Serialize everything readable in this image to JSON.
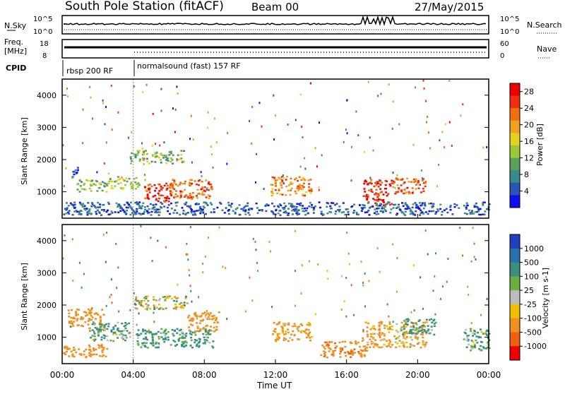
{
  "header": {
    "station": "South Pole Station (fitACF)",
    "beam": "Beam 00",
    "date": "27/May/2015"
  },
  "top_panels": {
    "nsky_label": "N.Sky",
    "nsearch_label": "N.Search",
    "nsky_tick_top": "10^5",
    "nsky_tick_bottom": "10^0",
    "freq_label_1": "Freq.",
    "freq_label_2": "[MHz]",
    "freq_tick_top": "18",
    "freq_tick_bottom": "8",
    "nave_label": "Nave",
    "nave_tick_top": "60",
    "nave_tick_bottom": "0",
    "cpid_label": "CPID",
    "cpid_1": "rbsp 200 RF",
    "cpid_2": "normalsound (fast) 157 RF"
  },
  "chart_data": [
    {
      "type": "heatmap",
      "panel": "power",
      "ylabel": "Slant Range [km]",
      "ylim": [
        180,
        4500
      ],
      "yticks": [
        "1000",
        "2000",
        "3000",
        "4000"
      ],
      "colorbar_label": "Power [dB]",
      "colorbar_ticks": [
        "4",
        "8",
        "12",
        "16",
        "20",
        "24",
        "28"
      ],
      "colorbar_colors": [
        "#1010ee",
        "#2a55b8",
        "#3b8a8a",
        "#5aa05a",
        "#9ac83a",
        "#e8d020",
        "#f0a020",
        "#f07010",
        "#ee3010",
        "#ee0000"
      ],
      "regions": [
        {
          "t": [
            0.5,
            1.0
          ],
          "r": [
            1450,
            1800
          ],
          "level": 4
        },
        {
          "t": [
            0.8,
            2.5
          ],
          "r": [
            1000,
            1400
          ],
          "level": 12
        },
        {
          "t": [
            2.5,
            4.3
          ],
          "r": [
            1100,
            1500
          ],
          "level": 14
        },
        {
          "t": [
            3.8,
            6.8
          ],
          "r": [
            1900,
            2300
          ],
          "level": 12
        },
        {
          "t": [
            4.6,
            6.2
          ],
          "r": [
            700,
            1300
          ],
          "level": 28
        },
        {
          "t": [
            6.0,
            8.4
          ],
          "r": [
            800,
            1400
          ],
          "level": 24
        },
        {
          "t": [
            11.7,
            14.0
          ],
          "r": [
            900,
            1500
          ],
          "level": 22
        },
        {
          "t": [
            16.9,
            18.5
          ],
          "r": [
            600,
            1400
          ],
          "level": 28
        },
        {
          "t": [
            18.5,
            20.4
          ],
          "r": [
            950,
            1450
          ],
          "level": 24
        },
        {
          "t": [
            0.0,
            24.0
          ],
          "r": [
            300,
            700
          ],
          "level": 4
        }
      ]
    },
    {
      "type": "heatmap",
      "panel": "velocity",
      "ylabel": "Slant Range [km]",
      "ylim": [
        180,
        4500
      ],
      "yticks": [
        "1000",
        "2000",
        "3000",
        "4000"
      ],
      "colorbar_label": "Velocity [m s-1]",
      "colorbar_ticks": [
        "1000",
        "500",
        "100",
        "25",
        "-25",
        "-100",
        "-500",
        "-1000"
      ],
      "colorbar_colors": [
        "#2040c0",
        "#2a70a8",
        "#3a9080",
        "#6ab040",
        "#bcbcbc",
        "#f0c000",
        "#f09020",
        "#f06010",
        "#ee0000"
      ],
      "regions": [
        {
          "t": [
            0.3,
            2.4
          ],
          "r": [
            1300,
            1900
          ],
          "velocity": -300
        },
        {
          "t": [
            1.5,
            3.8
          ],
          "r": [
            900,
            1500
          ],
          "velocity": 150
        },
        {
          "t": [
            0.0,
            2.5
          ],
          "r": [
            400,
            800
          ],
          "velocity": -300
        },
        {
          "t": [
            4.0,
            7.0
          ],
          "r": [
            1900,
            2300
          ],
          "velocity": 0
        },
        {
          "t": [
            4.0,
            8.5
          ],
          "r": [
            700,
            1300
          ],
          "velocity": 200
        },
        {
          "t": [
            7.0,
            8.8
          ],
          "r": [
            1200,
            1800
          ],
          "velocity": -300
        },
        {
          "t": [
            11.8,
            14.0
          ],
          "r": [
            900,
            1500
          ],
          "velocity": -200
        },
        {
          "t": [
            14.5,
            17.2
          ],
          "r": [
            400,
            900
          ],
          "velocity": -400
        },
        {
          "t": [
            16.8,
            20.5
          ],
          "r": [
            700,
            1500
          ],
          "velocity": -150
        },
        {
          "t": [
            19.0,
            21.0
          ],
          "r": [
            1100,
            1600
          ],
          "velocity": 200
        },
        {
          "t": [
            22.5,
            24.0
          ],
          "r": [
            600,
            1300
          ],
          "velocity": 150
        }
      ]
    }
  ],
  "time_axis": {
    "label": "Time UT",
    "ticks": [
      "00:00",
      "04:00",
      "08:00",
      "12:00",
      "16:00",
      "20:00",
      "00:00"
    ]
  }
}
